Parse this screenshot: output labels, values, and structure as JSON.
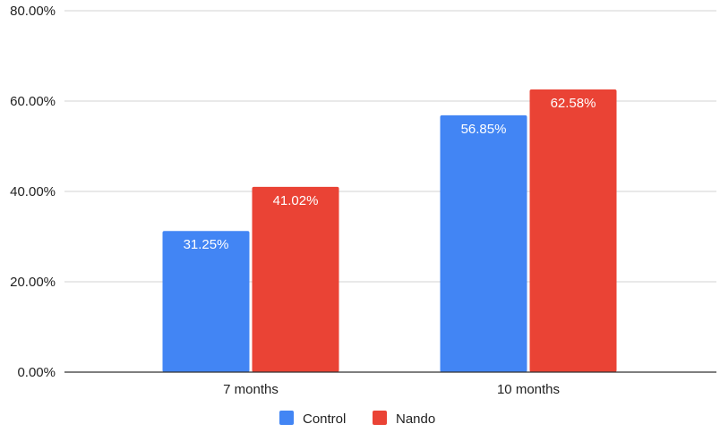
{
  "chart_data": {
    "type": "bar",
    "title": "",
    "xlabel": "",
    "ylabel": "",
    "categories": [
      "7 months",
      "10 months"
    ],
    "series": [
      {
        "name": "Control",
        "values": [
          31.25,
          56.85
        ],
        "color": "#4285F4"
      },
      {
        "name": "Nando",
        "values": [
          41.02,
          62.58
        ],
        "color": "#EA4335"
      }
    ],
    "data_labels": [
      [
        "31.25%",
        "56.85%"
      ],
      [
        "41.02%",
        "62.58%"
      ]
    ],
    "ylim": [
      0,
      80
    ],
    "yticks": [
      0,
      20,
      40,
      60,
      80
    ],
    "ytick_labels": [
      "0.00%",
      "20.00%",
      "40.00%",
      "60.00%",
      "80.00%"
    ],
    "grid": true,
    "legend_position": "bottom"
  }
}
